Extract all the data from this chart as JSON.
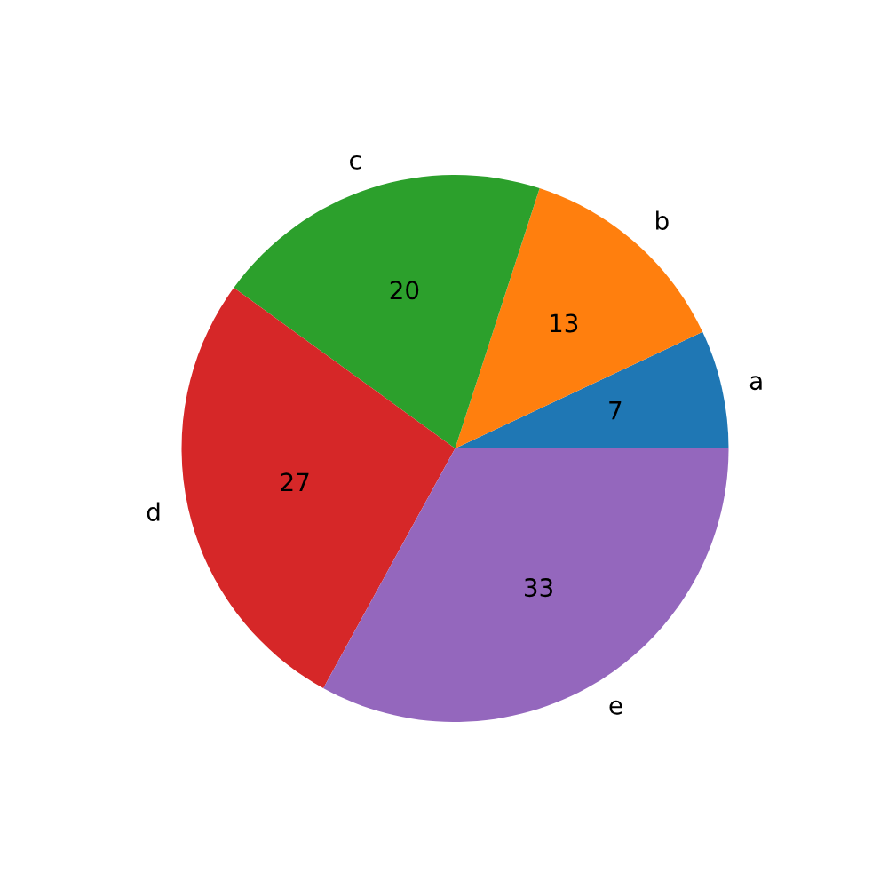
{
  "chart_data": {
    "type": "pie",
    "categories": [
      "a",
      "b",
      "c",
      "d",
      "e"
    ],
    "values": [
      7,
      13,
      20,
      27,
      33
    ],
    "colors": [
      "#1f77b4",
      "#ff7f0e",
      "#2ca02c",
      "#d62728",
      "#9467bd"
    ],
    "data_labels": true
  }
}
